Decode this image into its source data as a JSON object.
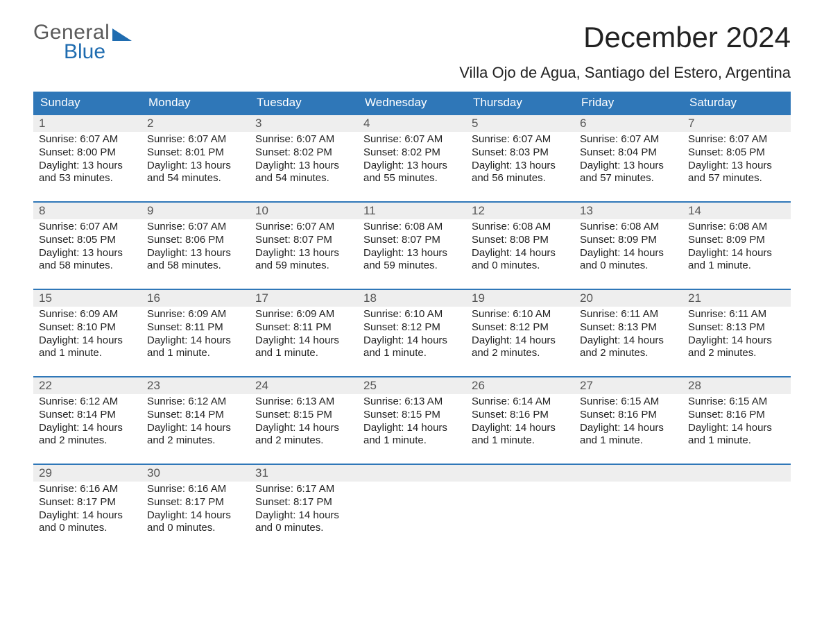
{
  "logo": {
    "text1": "General",
    "text2": "Blue",
    "color_gray": "#5a5a5a",
    "color_blue": "#1f6cb0",
    "tri_color": "#1f6cb0"
  },
  "header": {
    "month_title": "December 2024",
    "location": "Villa Ojo de Agua, Santiago del Estero, Argentina"
  },
  "theme": {
    "header_bg": "#2f77b8",
    "header_fg": "#ffffff",
    "daynum_bg": "#eeeeee",
    "daynum_fg": "#555555",
    "cell_border": "#2f77b8",
    "text_color": "#222222",
    "font_family": "Segoe UI, Arial, Helvetica, sans-serif",
    "month_title_fontsize": 42,
    "location_fontsize": 22,
    "header_fontsize": 17,
    "daynum_fontsize": 17,
    "body_fontsize": 15
  },
  "weekdays": [
    "Sunday",
    "Monday",
    "Tuesday",
    "Wednesday",
    "Thursday",
    "Friday",
    "Saturday"
  ],
  "labels": {
    "sunrise": "Sunrise:",
    "sunset": "Sunset:",
    "daylight": "Daylight:"
  },
  "days": [
    {
      "n": 1,
      "sunrise": "6:07 AM",
      "sunset": "8:00 PM",
      "daylight": "13 hours and 53 minutes."
    },
    {
      "n": 2,
      "sunrise": "6:07 AM",
      "sunset": "8:01 PM",
      "daylight": "13 hours and 54 minutes."
    },
    {
      "n": 3,
      "sunrise": "6:07 AM",
      "sunset": "8:02 PM",
      "daylight": "13 hours and 54 minutes."
    },
    {
      "n": 4,
      "sunrise": "6:07 AM",
      "sunset": "8:02 PM",
      "daylight": "13 hours and 55 minutes."
    },
    {
      "n": 5,
      "sunrise": "6:07 AM",
      "sunset": "8:03 PM",
      "daylight": "13 hours and 56 minutes."
    },
    {
      "n": 6,
      "sunrise": "6:07 AM",
      "sunset": "8:04 PM",
      "daylight": "13 hours and 57 minutes."
    },
    {
      "n": 7,
      "sunrise": "6:07 AM",
      "sunset": "8:05 PM",
      "daylight": "13 hours and 57 minutes."
    },
    {
      "n": 8,
      "sunrise": "6:07 AM",
      "sunset": "8:05 PM",
      "daylight": "13 hours and 58 minutes."
    },
    {
      "n": 9,
      "sunrise": "6:07 AM",
      "sunset": "8:06 PM",
      "daylight": "13 hours and 58 minutes."
    },
    {
      "n": 10,
      "sunrise": "6:07 AM",
      "sunset": "8:07 PM",
      "daylight": "13 hours and 59 minutes."
    },
    {
      "n": 11,
      "sunrise": "6:08 AM",
      "sunset": "8:07 PM",
      "daylight": "13 hours and 59 minutes."
    },
    {
      "n": 12,
      "sunrise": "6:08 AM",
      "sunset": "8:08 PM",
      "daylight": "14 hours and 0 minutes."
    },
    {
      "n": 13,
      "sunrise": "6:08 AM",
      "sunset": "8:09 PM",
      "daylight": "14 hours and 0 minutes."
    },
    {
      "n": 14,
      "sunrise": "6:08 AM",
      "sunset": "8:09 PM",
      "daylight": "14 hours and 1 minute."
    },
    {
      "n": 15,
      "sunrise": "6:09 AM",
      "sunset": "8:10 PM",
      "daylight": "14 hours and 1 minute."
    },
    {
      "n": 16,
      "sunrise": "6:09 AM",
      "sunset": "8:11 PM",
      "daylight": "14 hours and 1 minute."
    },
    {
      "n": 17,
      "sunrise": "6:09 AM",
      "sunset": "8:11 PM",
      "daylight": "14 hours and 1 minute."
    },
    {
      "n": 18,
      "sunrise": "6:10 AM",
      "sunset": "8:12 PM",
      "daylight": "14 hours and 1 minute."
    },
    {
      "n": 19,
      "sunrise": "6:10 AM",
      "sunset": "8:12 PM",
      "daylight": "14 hours and 2 minutes."
    },
    {
      "n": 20,
      "sunrise": "6:11 AM",
      "sunset": "8:13 PM",
      "daylight": "14 hours and 2 minutes."
    },
    {
      "n": 21,
      "sunrise": "6:11 AM",
      "sunset": "8:13 PM",
      "daylight": "14 hours and 2 minutes."
    },
    {
      "n": 22,
      "sunrise": "6:12 AM",
      "sunset": "8:14 PM",
      "daylight": "14 hours and 2 minutes."
    },
    {
      "n": 23,
      "sunrise": "6:12 AM",
      "sunset": "8:14 PM",
      "daylight": "14 hours and 2 minutes."
    },
    {
      "n": 24,
      "sunrise": "6:13 AM",
      "sunset": "8:15 PM",
      "daylight": "14 hours and 2 minutes."
    },
    {
      "n": 25,
      "sunrise": "6:13 AM",
      "sunset": "8:15 PM",
      "daylight": "14 hours and 1 minute."
    },
    {
      "n": 26,
      "sunrise": "6:14 AM",
      "sunset": "8:16 PM",
      "daylight": "14 hours and 1 minute."
    },
    {
      "n": 27,
      "sunrise": "6:15 AM",
      "sunset": "8:16 PM",
      "daylight": "14 hours and 1 minute."
    },
    {
      "n": 28,
      "sunrise": "6:15 AM",
      "sunset": "8:16 PM",
      "daylight": "14 hours and 1 minute."
    },
    {
      "n": 29,
      "sunrise": "6:16 AM",
      "sunset": "8:17 PM",
      "daylight": "14 hours and 0 minutes."
    },
    {
      "n": 30,
      "sunrise": "6:16 AM",
      "sunset": "8:17 PM",
      "daylight": "14 hours and 0 minutes."
    },
    {
      "n": 31,
      "sunrise": "6:17 AM",
      "sunset": "8:17 PM",
      "daylight": "14 hours and 0 minutes."
    }
  ],
  "grid": {
    "start_offset": 0,
    "weeks": 5,
    "cols": 7
  }
}
